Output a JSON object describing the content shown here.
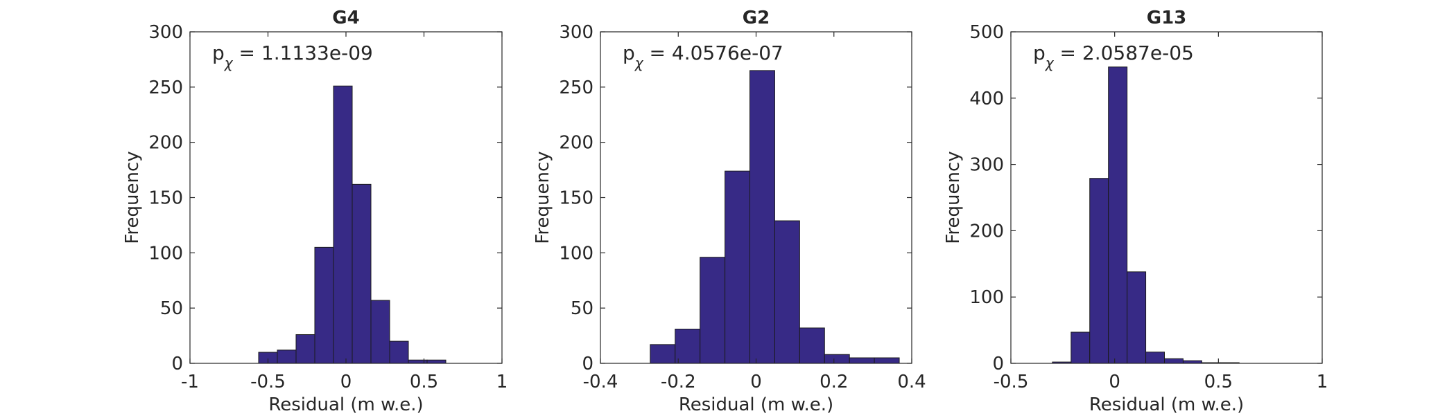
{
  "chart_data": [
    {
      "type": "bar",
      "title": "G4",
      "xlabel": "Residual (m w.e.)",
      "ylabel": "Frequency",
      "xlim": [
        -1,
        1
      ],
      "ylim": [
        0,
        300
      ],
      "xticks": [
        -1,
        -0.5,
        0,
        0.5,
        1
      ],
      "xtick_labels": [
        "-1",
        "-0.5",
        "0",
        "0.5",
        "1"
      ],
      "yticks": [
        0,
        50,
        100,
        150,
        200,
        250,
        300
      ],
      "ytick_labels": [
        "0",
        "50",
        "100",
        "150",
        "200",
        "250",
        "300"
      ],
      "annotation": {
        "prefix": "p",
        "subscript": "χ",
        "text": " = 1.1133e-09"
      },
      "bar_color": "#372a86",
      "bins": [
        {
          "x0": -0.56,
          "x1": -0.44,
          "value": 10
        },
        {
          "x0": -0.44,
          "x1": -0.32,
          "value": 12
        },
        {
          "x0": -0.32,
          "x1": -0.2,
          "value": 26
        },
        {
          "x0": -0.2,
          "x1": -0.08,
          "value": 105
        },
        {
          "x0": -0.08,
          "x1": 0.04,
          "value": 251
        },
        {
          "x0": 0.04,
          "x1": 0.16,
          "value": 162
        },
        {
          "x0": 0.16,
          "x1": 0.28,
          "value": 57
        },
        {
          "x0": 0.28,
          "x1": 0.4,
          "value": 20
        },
        {
          "x0": 0.4,
          "x1": 0.52,
          "value": 3
        },
        {
          "x0": 0.52,
          "x1": 0.64,
          "value": 3
        }
      ]
    },
    {
      "type": "bar",
      "title": "G2",
      "xlabel": "Residual (m w.e.)",
      "ylabel": "Frequency",
      "xlim": [
        -0.4,
        0.4
      ],
      "ylim": [
        0,
        300
      ],
      "xticks": [
        -0.4,
        -0.2,
        0,
        0.2,
        0.4
      ],
      "xtick_labels": [
        "-0.4",
        "-0.2",
        "0",
        "0.2",
        "0.4"
      ],
      "yticks": [
        0,
        50,
        100,
        150,
        200,
        250,
        300
      ],
      "ytick_labels": [
        "0",
        "50",
        "100",
        "150",
        "200",
        "250",
        "300"
      ],
      "annotation": {
        "prefix": "p",
        "subscript": "χ",
        "text": " = 4.0576e-07"
      },
      "bar_color": "#372a86",
      "bins": [
        {
          "x0": -0.272,
          "x1": -0.208,
          "value": 17
        },
        {
          "x0": -0.208,
          "x1": -0.144,
          "value": 31
        },
        {
          "x0": -0.144,
          "x1": -0.08,
          "value": 96
        },
        {
          "x0": -0.08,
          "x1": -0.016,
          "value": 174
        },
        {
          "x0": -0.016,
          "x1": 0.048,
          "value": 265
        },
        {
          "x0": 0.048,
          "x1": 0.112,
          "value": 129
        },
        {
          "x0": 0.112,
          "x1": 0.176,
          "value": 32
        },
        {
          "x0": 0.176,
          "x1": 0.24,
          "value": 8
        },
        {
          "x0": 0.24,
          "x1": 0.304,
          "value": 5
        },
        {
          "x0": 0.304,
          "x1": 0.368,
          "value": 5
        }
      ]
    },
    {
      "type": "bar",
      "title": "G13",
      "xlabel": "Residual (m w.e.)",
      "ylabel": "Frequency",
      "xlim": [
        -0.5,
        1
      ],
      "ylim": [
        0,
        500
      ],
      "xticks": [
        -0.5,
        0,
        0.5,
        1
      ],
      "xtick_labels": [
        "-0.5",
        "0",
        "0.5",
        "1"
      ],
      "yticks": [
        0,
        100,
        200,
        300,
        400,
        500
      ],
      "ytick_labels": [
        "0",
        "100",
        "200",
        "300",
        "400",
        "500"
      ],
      "annotation": {
        "prefix": "p",
        "subscript": "χ",
        "text": " = 2.0587e-05"
      },
      "bar_color": "#372a86",
      "bins": [
        {
          "x0": -0.3,
          "x1": -0.21,
          "value": 2
        },
        {
          "x0": -0.21,
          "x1": -0.12,
          "value": 47
        },
        {
          "x0": -0.12,
          "x1": -0.03,
          "value": 279
        },
        {
          "x0": -0.03,
          "x1": 0.06,
          "value": 447
        },
        {
          "x0": 0.06,
          "x1": 0.15,
          "value": 138
        },
        {
          "x0": 0.15,
          "x1": 0.24,
          "value": 17
        },
        {
          "x0": 0.24,
          "x1": 0.33,
          "value": 7
        },
        {
          "x0": 0.33,
          "x1": 0.42,
          "value": 4
        },
        {
          "x0": 0.42,
          "x1": 0.51,
          "value": 1
        },
        {
          "x0": 0.51,
          "x1": 0.6,
          "value": 1
        }
      ]
    }
  ]
}
